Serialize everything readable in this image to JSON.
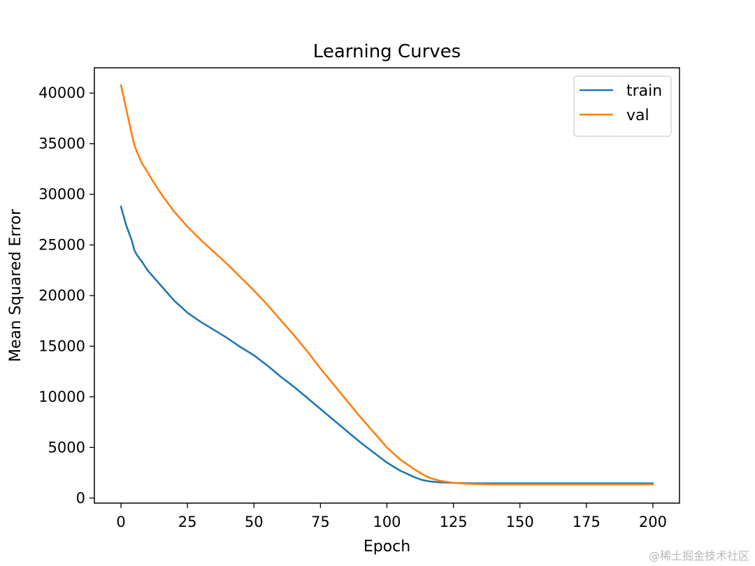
{
  "chart_data": {
    "type": "line",
    "title": "Learning Curves",
    "xlabel": "Epoch",
    "ylabel": "Mean Squared Error",
    "xlim": [
      -10,
      210
    ],
    "ylim": [
      -500,
      42500
    ],
    "xticks": [
      0,
      25,
      50,
      75,
      100,
      125,
      150,
      175,
      200
    ],
    "yticks": [
      0,
      5000,
      10000,
      15000,
      20000,
      25000,
      30000,
      35000,
      40000
    ],
    "grid": false,
    "legend_position": "top-right",
    "series": [
      {
        "name": "train",
        "color": "#1f77b4",
        "x": [
          0,
          2,
          4,
          5,
          6,
          8,
          10,
          12,
          15,
          18,
          20,
          25,
          30,
          35,
          40,
          45,
          50,
          55,
          60,
          65,
          70,
          75,
          80,
          85,
          90,
          95,
          100,
          105,
          110,
          113,
          116,
          120,
          125,
          130,
          135,
          140,
          145,
          150,
          160,
          170,
          180,
          190,
          200
        ],
        "y": [
          28800,
          26900,
          25500,
          24500,
          24000,
          23300,
          22500,
          21900,
          21000,
          20100,
          19500,
          18300,
          17400,
          16600,
          15800,
          14900,
          14100,
          13100,
          12000,
          11000,
          9900,
          8800,
          7700,
          6600,
          5500,
          4500,
          3500,
          2700,
          2100,
          1800,
          1650,
          1550,
          1500,
          1470,
          1450,
          1450,
          1450,
          1450,
          1450,
          1450,
          1450,
          1450,
          1450
        ]
      },
      {
        "name": "val",
        "color": "#ff7f0e",
        "x": [
          0,
          2,
          4,
          5,
          6,
          8,
          10,
          12,
          15,
          18,
          20,
          25,
          30,
          35,
          40,
          45,
          50,
          55,
          60,
          65,
          70,
          75,
          80,
          85,
          90,
          95,
          100,
          105,
          110,
          113,
          116,
          120,
          125,
          130,
          135,
          140,
          145,
          150,
          160,
          170,
          180,
          190,
          200
        ],
        "y": [
          40800,
          38400,
          36000,
          34900,
          34200,
          33000,
          32200,
          31300,
          30100,
          29000,
          28300,
          26800,
          25500,
          24300,
          23100,
          21800,
          20500,
          19100,
          17600,
          16100,
          14500,
          12800,
          11200,
          9600,
          8000,
          6500,
          5000,
          3800,
          2900,
          2400,
          2000,
          1700,
          1500,
          1420,
          1380,
          1350,
          1350,
          1350,
          1350,
          1350,
          1350,
          1350,
          1350
        ]
      }
    ]
  },
  "watermark": "@稀土掘金技术社区"
}
